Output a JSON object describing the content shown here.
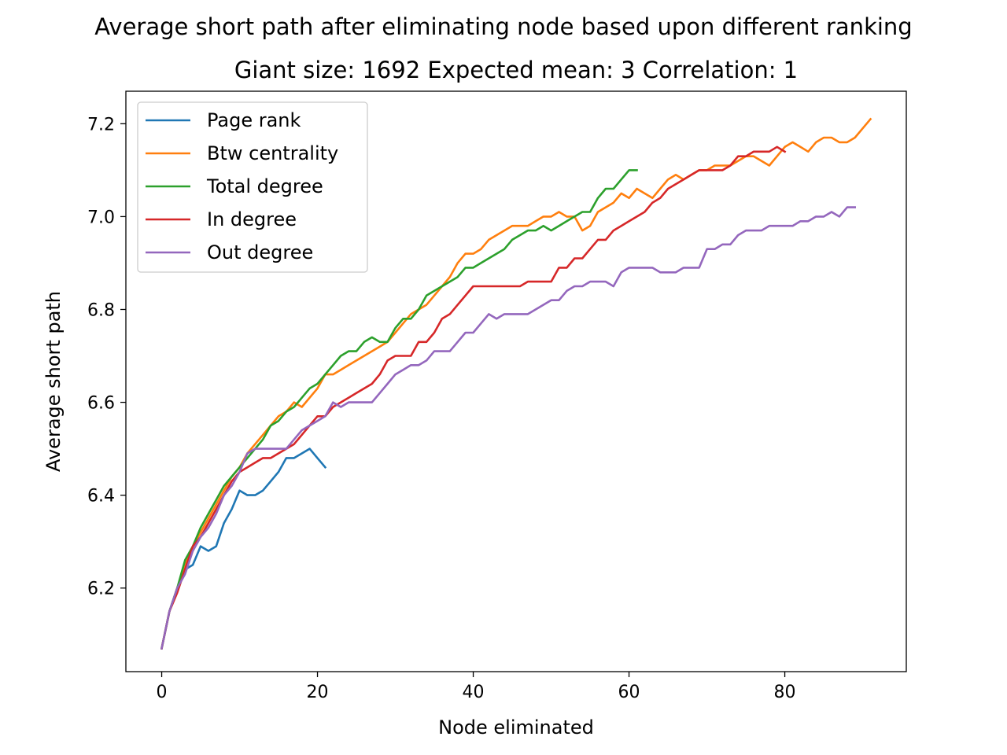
{
  "chart_data": {
    "type": "line",
    "title": "Average short path after eliminating node based upon different ranking",
    "subtitle": "Giant size: 1692  Expected mean: 3  Correlation: 1",
    "xlabel": "Node eliminated",
    "ylabel": "Average short path",
    "xlim": [
      -4.6,
      95.6
    ],
    "ylim": [
      6.02,
      7.27
    ],
    "xticks": [
      0,
      20,
      40,
      60,
      80
    ],
    "yticks": [
      6.2,
      6.4,
      6.6,
      6.8,
      7.0,
      7.2
    ],
    "grid": false,
    "legend": "top-left",
    "series": [
      {
        "name": "Page rank",
        "color": "#1f77b4",
        "values": [
          6.07,
          6.15,
          6.2,
          6.24,
          6.25,
          6.29,
          6.28,
          6.29,
          6.34,
          6.37,
          6.41,
          6.4,
          6.4,
          6.41,
          6.43,
          6.45,
          6.48,
          6.48,
          6.49,
          6.5,
          6.48,
          6.46
        ]
      },
      {
        "name": "Btw centrality",
        "color": "#ff7f0e",
        "values": [
          6.07,
          6.15,
          6.2,
          6.25,
          6.29,
          6.32,
          6.35,
          6.38,
          6.41,
          6.44,
          6.46,
          6.49,
          6.51,
          6.53,
          6.55,
          6.57,
          6.58,
          6.6,
          6.59,
          6.61,
          6.63,
          6.66,
          6.66,
          6.67,
          6.68,
          6.69,
          6.7,
          6.71,
          6.72,
          6.73,
          6.75,
          6.77,
          6.79,
          6.8,
          6.81,
          6.83,
          6.85,
          6.87,
          6.9,
          6.92,
          6.92,
          6.93,
          6.95,
          6.96,
          6.97,
          6.98,
          6.98,
          6.98,
          6.99,
          7.0,
          7.0,
          7.01,
          7.0,
          7.0,
          6.97,
          6.98,
          7.01,
          7.02,
          7.03,
          7.05,
          7.04,
          7.06,
          7.05,
          7.04,
          7.06,
          7.08,
          7.09,
          7.08,
          7.09,
          7.1,
          7.1,
          7.11,
          7.11,
          7.11,
          7.12,
          7.13,
          7.13,
          7.12,
          7.11,
          7.13,
          7.15,
          7.16,
          7.15,
          7.14,
          7.16,
          7.17,
          7.17,
          7.16,
          7.16,
          7.17,
          7.19,
          7.21
        ]
      },
      {
        "name": "Total degree",
        "color": "#2ca02c",
        "values": [
          6.07,
          6.15,
          6.2,
          6.26,
          6.29,
          6.33,
          6.36,
          6.39,
          6.42,
          6.44,
          6.46,
          6.48,
          6.5,
          6.52,
          6.55,
          6.56,
          6.58,
          6.59,
          6.61,
          6.63,
          6.64,
          6.66,
          6.68,
          6.7,
          6.71,
          6.71,
          6.73,
          6.74,
          6.73,
          6.73,
          6.76,
          6.78,
          6.78,
          6.8,
          6.83,
          6.84,
          6.85,
          6.86,
          6.87,
          6.89,
          6.89,
          6.9,
          6.91,
          6.92,
          6.93,
          6.95,
          6.96,
          6.97,
          6.97,
          6.98,
          6.97,
          6.98,
          6.99,
          7.0,
          7.01,
          7.01,
          7.04,
          7.06,
          7.06,
          7.08,
          7.1,
          7.1
        ]
      },
      {
        "name": "In degree",
        "color": "#d62728",
        "values": [
          6.07,
          6.15,
          6.19,
          6.24,
          6.29,
          6.31,
          6.34,
          6.37,
          6.4,
          6.43,
          6.45,
          6.46,
          6.47,
          6.48,
          6.48,
          6.49,
          6.5,
          6.51,
          6.53,
          6.55,
          6.57,
          6.57,
          6.59,
          6.6,
          6.61,
          6.62,
          6.63,
          6.64,
          6.66,
          6.69,
          6.7,
          6.7,
          6.7,
          6.73,
          6.73,
          6.75,
          6.78,
          6.79,
          6.81,
          6.83,
          6.85,
          6.85,
          6.85,
          6.85,
          6.85,
          6.85,
          6.85,
          6.86,
          6.86,
          6.86,
          6.86,
          6.89,
          6.89,
          6.91,
          6.91,
          6.93,
          6.95,
          6.95,
          6.97,
          6.98,
          6.99,
          7.0,
          7.01,
          7.03,
          7.04,
          7.06,
          7.07,
          7.08,
          7.09,
          7.1,
          7.1,
          7.1,
          7.1,
          7.11,
          7.13,
          7.13,
          7.14,
          7.14,
          7.14,
          7.15,
          7.14
        ]
      },
      {
        "name": "Out degree",
        "color": "#9467bd",
        "values": [
          6.07,
          6.15,
          6.2,
          6.23,
          6.28,
          6.31,
          6.33,
          6.36,
          6.4,
          6.42,
          6.45,
          6.49,
          6.5,
          6.5,
          6.5,
          6.5,
          6.5,
          6.52,
          6.54,
          6.55,
          6.56,
          6.57,
          6.6,
          6.59,
          6.6,
          6.6,
          6.6,
          6.6,
          6.62,
          6.64,
          6.66,
          6.67,
          6.68,
          6.68,
          6.69,
          6.71,
          6.71,
          6.71,
          6.73,
          6.75,
          6.75,
          6.77,
          6.79,
          6.78,
          6.79,
          6.79,
          6.79,
          6.79,
          6.8,
          6.81,
          6.82,
          6.82,
          6.84,
          6.85,
          6.85,
          6.86,
          6.86,
          6.86,
          6.85,
          6.88,
          6.89,
          6.89,
          6.89,
          6.89,
          6.88,
          6.88,
          6.88,
          6.89,
          6.89,
          6.89,
          6.93,
          6.93,
          6.94,
          6.94,
          6.96,
          6.97,
          6.97,
          6.97,
          6.98,
          6.98,
          6.98,
          6.98,
          6.99,
          6.99,
          7.0,
          7.0,
          7.01,
          7.0,
          7.02,
          7.02
        ]
      }
    ]
  }
}
